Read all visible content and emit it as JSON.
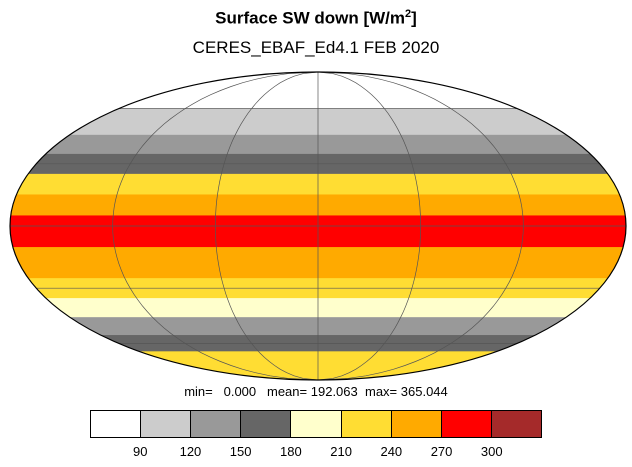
{
  "title": {
    "text": "Surface SW down [W/m",
    "sup": "2",
    "close": "]"
  },
  "subtitle": "CERES_EBAF_Ed4.1 FEB 2020",
  "stats": {
    "min_label": "min=",
    "min": "0.000",
    "mean_label": "mean=",
    "mean": "192.063",
    "max_label": "max=",
    "max": "365.044"
  },
  "colorbar": {
    "colors": [
      "#ffffff",
      "#cccccc",
      "#999999",
      "#666666",
      "#ffffcc",
      "#ffdd33",
      "#ffaa00",
      "#ff0000",
      "#a52a2a"
    ],
    "labels": [
      "90",
      "120",
      "150",
      "180",
      "210",
      "240",
      "270",
      "300"
    ]
  },
  "map": {
    "projection": "mollweide",
    "bands": [
      {
        "lat_from": 90,
        "lat_to": 60,
        "color": "#ffffff"
      },
      {
        "lat_from": 60,
        "lat_to": 45,
        "color": "#cccccc"
      },
      {
        "lat_from": 45,
        "lat_to": 35,
        "color": "#999999"
      },
      {
        "lat_from": 35,
        "lat_to": 25,
        "color": "#666666"
      },
      {
        "lat_from": 25,
        "lat_to": 15,
        "color": "#ffdd33"
      },
      {
        "lat_from": 15,
        "lat_to": 5,
        "color": "#ffaa00"
      },
      {
        "lat_from": 5,
        "lat_to": -10,
        "color": "#ff0000"
      },
      {
        "lat_from": -10,
        "lat_to": -25,
        "color": "#ffaa00"
      },
      {
        "lat_from": -25,
        "lat_to": -35,
        "color": "#ffdd33"
      },
      {
        "lat_from": -35,
        "lat_to": -45,
        "color": "#ffffcc"
      },
      {
        "lat_from": -45,
        "lat_to": -55,
        "color": "#999999"
      },
      {
        "lat_from": -55,
        "lat_to": -65,
        "color": "#666666"
      },
      {
        "lat_from": -65,
        "lat_to": -90,
        "color": "#ffdd33"
      }
    ]
  }
}
